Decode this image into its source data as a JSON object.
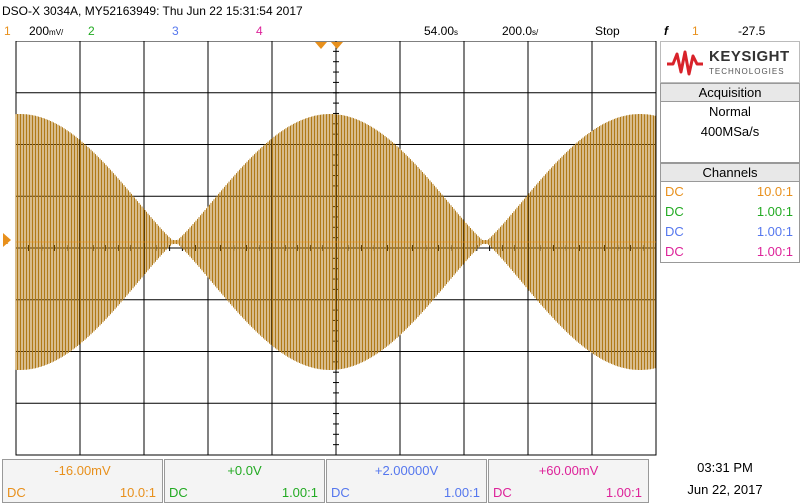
{
  "title": "DSO-X 3034A, MY52163949: Thu Jun 22 15:31:54 2017",
  "header": {
    "ch1_num": "1",
    "ch1_scale": "200",
    "ch1_unit": "mV/",
    "ch2_num": "2",
    "ch3_num": "3",
    "ch4_num": "4",
    "timebase": "54.00",
    "timebase_unit": "s",
    "timediv": "200.0",
    "timediv_unit": "s/",
    "run_state": "Stop",
    "trigger_icon": "f",
    "trigger_src": "1",
    "trigger_level": "-27.5"
  },
  "logo": {
    "name": "KEYSIGHT",
    "sub": "TECHNOLOGIES"
  },
  "acquisition": {
    "label": "Acquisition",
    "mode": "Normal",
    "rate": "400MSa/s"
  },
  "channels": {
    "label": "Channels",
    "rows": [
      {
        "coupling": "DC",
        "probe": "10.0:1",
        "color": "#e8901c"
      },
      {
        "coupling": "DC",
        "probe": "1.00:1",
        "color": "#22aa22"
      },
      {
        "coupling": "DC",
        "probe": "1.00:1",
        "color": "#5577ee"
      },
      {
        "coupling": "DC",
        "probe": "1.00:1",
        "color": "#dd2299"
      }
    ]
  },
  "bottom": {
    "cards": [
      {
        "value": "-16.00mV",
        "coupling": "DC",
        "probe": "10.0:1",
        "color": "#e8901c"
      },
      {
        "value": "+0.0V",
        "coupling": "DC",
        "probe": "1.00:1",
        "color": "#22aa22"
      },
      {
        "value": "+2.00000V",
        "coupling": "DC",
        "probe": "1.00:1",
        "color": "#5577ee"
      },
      {
        "value": "+60.00mV",
        "coupling": "DC",
        "probe": "1.00:1",
        "color": "#dd2299"
      }
    ],
    "time": "03:31 PM",
    "date": "Jun 22, 2017"
  },
  "colors": {
    "ch1": "#e8901c",
    "trace": "#b07a18",
    "ch2": "#22aa22",
    "ch3": "#5577ee",
    "ch4": "#dd2299"
  }
}
